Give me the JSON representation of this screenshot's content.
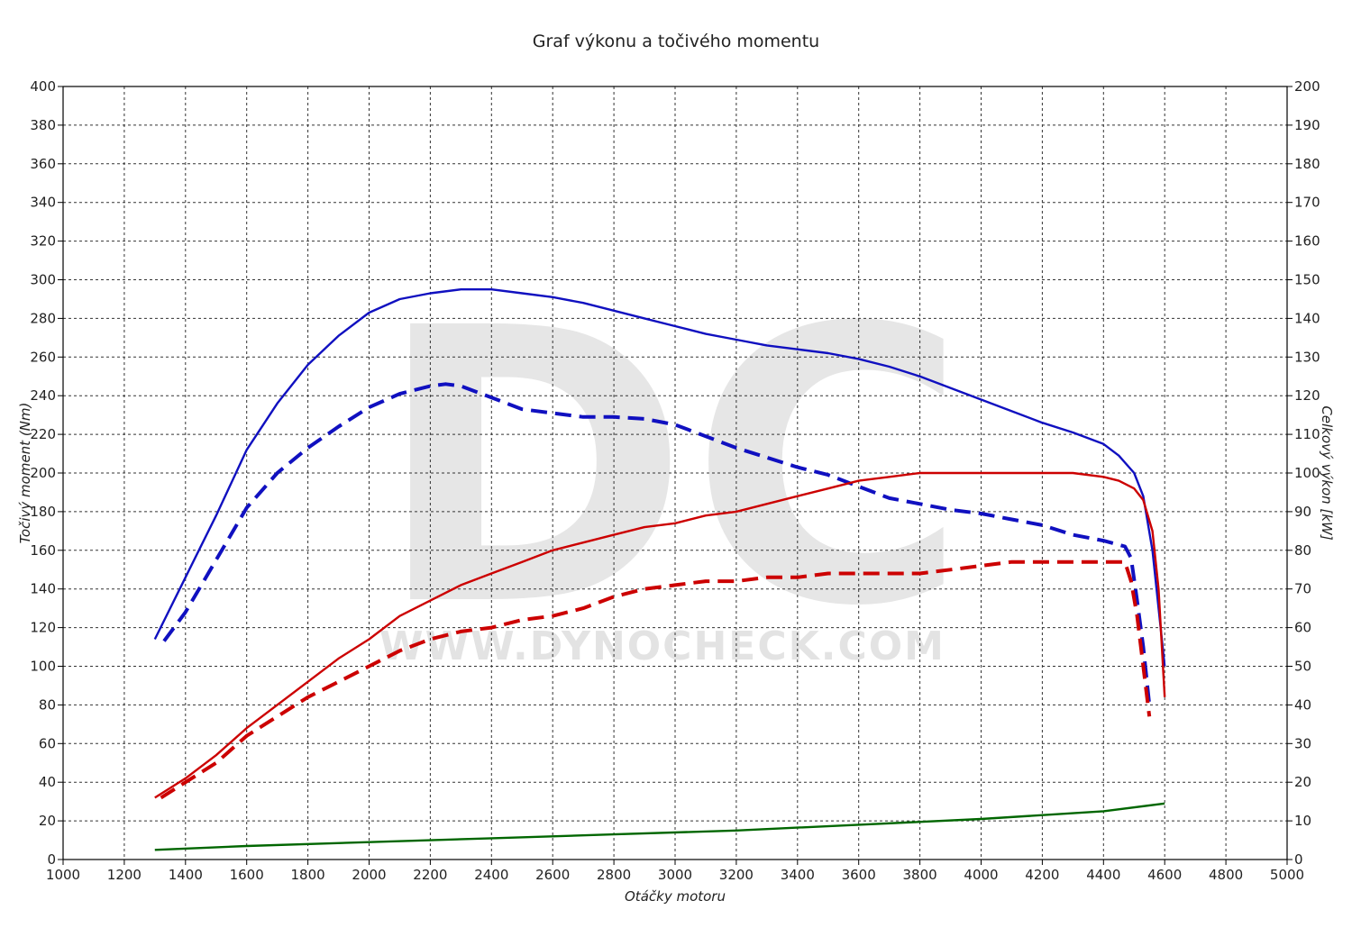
{
  "chart_data": {
    "type": "line",
    "title": "Graf výkonu a točivého momentu",
    "xlabel": "Otáčky motoru",
    "ylabel_left": "Točivý moment (Nm)",
    "ylabel_right": "Celkový výkon [kW]",
    "xlim": [
      1000,
      5000
    ],
    "ylim_left": [
      0,
      400
    ],
    "ylim_right": [
      0,
      200
    ],
    "x_ticks": [
      1000,
      1200,
      1400,
      1600,
      1800,
      2000,
      2200,
      2400,
      2600,
      2800,
      3000,
      3200,
      3400,
      3600,
      3800,
      4000,
      4200,
      4400,
      4600,
      4800,
      5000
    ],
    "y_ticks_left": [
      0,
      20,
      40,
      60,
      80,
      100,
      120,
      140,
      160,
      180,
      200,
      220,
      240,
      260,
      280,
      300,
      320,
      340,
      360,
      380,
      400
    ],
    "y_ticks_right": [
      0,
      10,
      20,
      30,
      40,
      50,
      60,
      70,
      80,
      90,
      100,
      110,
      120,
      130,
      140,
      150,
      160,
      170,
      180,
      190,
      200
    ],
    "grid": true,
    "watermark": {
      "letters": "DC",
      "url": "WWW.DYNOCHECK.COM"
    },
    "series": [
      {
        "axis": "left",
        "color": "#1010c0",
        "dash": false,
        "points": [
          [
            1300,
            114
          ],
          [
            1400,
            146
          ],
          [
            1500,
            178
          ],
          [
            1600,
            212
          ],
          [
            1700,
            236
          ],
          [
            1800,
            256
          ],
          [
            1900,
            271
          ],
          [
            2000,
            283
          ],
          [
            2100,
            290
          ],
          [
            2200,
            293
          ],
          [
            2300,
            295
          ],
          [
            2400,
            295
          ],
          [
            2500,
            293
          ],
          [
            2600,
            291
          ],
          [
            2700,
            288
          ],
          [
            2800,
            284
          ],
          [
            2900,
            280
          ],
          [
            3000,
            276
          ],
          [
            3100,
            272
          ],
          [
            3200,
            269
          ],
          [
            3300,
            266
          ],
          [
            3400,
            264
          ],
          [
            3500,
            262
          ],
          [
            3600,
            259
          ],
          [
            3700,
            255
          ],
          [
            3800,
            250
          ],
          [
            3900,
            244
          ],
          [
            4000,
            238
          ],
          [
            4100,
            232
          ],
          [
            4200,
            226
          ],
          [
            4300,
            221
          ],
          [
            4400,
            215
          ],
          [
            4450,
            209
          ],
          [
            4500,
            200
          ],
          [
            4530,
            188
          ],
          [
            4560,
            160
          ],
          [
            4580,
            130
          ],
          [
            4600,
            100
          ]
        ]
      },
      {
        "axis": "left",
        "color": "#1010c0",
        "dash": true,
        "points": [
          [
            1330,
            113
          ],
          [
            1400,
            128
          ],
          [
            1500,
            155
          ],
          [
            1600,
            182
          ],
          [
            1700,
            200
          ],
          [
            1800,
            213
          ],
          [
            1900,
            224
          ],
          [
            2000,
            234
          ],
          [
            2100,
            241
          ],
          [
            2200,
            245
          ],
          [
            2250,
            246
          ],
          [
            2300,
            245
          ],
          [
            2400,
            239
          ],
          [
            2500,
            233
          ],
          [
            2600,
            231
          ],
          [
            2700,
            229
          ],
          [
            2800,
            229
          ],
          [
            2900,
            228
          ],
          [
            3000,
            225
          ],
          [
            3100,
            219
          ],
          [
            3200,
            213
          ],
          [
            3300,
            208
          ],
          [
            3400,
            203
          ],
          [
            3500,
            199
          ],
          [
            3600,
            193
          ],
          [
            3700,
            187
          ],
          [
            3800,
            184
          ],
          [
            3900,
            181
          ],
          [
            4000,
            179
          ],
          [
            4100,
            176
          ],
          [
            4200,
            173
          ],
          [
            4300,
            168
          ],
          [
            4400,
            165
          ],
          [
            4470,
            162
          ],
          [
            4490,
            156
          ],
          [
            4510,
            134
          ],
          [
            4530,
            110
          ],
          [
            4550,
            80
          ]
        ]
      },
      {
        "axis": "right",
        "color": "#cc0000",
        "dash": false,
        "points": [
          [
            1300,
            16
          ],
          [
            1400,
            21
          ],
          [
            1500,
            27
          ],
          [
            1600,
            34
          ],
          [
            1700,
            40
          ],
          [
            1800,
            46
          ],
          [
            1900,
            52
          ],
          [
            2000,
            57
          ],
          [
            2100,
            63
          ],
          [
            2200,
            67
          ],
          [
            2300,
            71
          ],
          [
            2400,
            74
          ],
          [
            2500,
            77
          ],
          [
            2600,
            80
          ],
          [
            2700,
            82
          ],
          [
            2800,
            84
          ],
          [
            2900,
            86
          ],
          [
            3000,
            87
          ],
          [
            3100,
            89
          ],
          [
            3200,
            90
          ],
          [
            3300,
            92
          ],
          [
            3400,
            94
          ],
          [
            3500,
            96
          ],
          [
            3600,
            98
          ],
          [
            3700,
            99
          ],
          [
            3800,
            100
          ],
          [
            3900,
            100
          ],
          [
            4000,
            100
          ],
          [
            4100,
            100
          ],
          [
            4200,
            100
          ],
          [
            4300,
            100
          ],
          [
            4400,
            99
          ],
          [
            4450,
            98
          ],
          [
            4500,
            96
          ],
          [
            4530,
            93
          ],
          [
            4560,
            85
          ],
          [
            4580,
            70
          ],
          [
            4600,
            42
          ]
        ]
      },
      {
        "axis": "right",
        "color": "#cc0000",
        "dash": true,
        "points": [
          [
            1320,
            16
          ],
          [
            1400,
            20
          ],
          [
            1500,
            25
          ],
          [
            1600,
            32
          ],
          [
            1700,
            37
          ],
          [
            1800,
            42
          ],
          [
            1900,
            46
          ],
          [
            2000,
            50
          ],
          [
            2100,
            54
          ],
          [
            2200,
            57
          ],
          [
            2300,
            59
          ],
          [
            2400,
            60
          ],
          [
            2500,
            62
          ],
          [
            2600,
            63
          ],
          [
            2700,
            65
          ],
          [
            2800,
            68
          ],
          [
            2900,
            70
          ],
          [
            3000,
            71
          ],
          [
            3100,
            72
          ],
          [
            3200,
            72
          ],
          [
            3300,
            73
          ],
          [
            3400,
            73
          ],
          [
            3500,
            74
          ],
          [
            3600,
            74
          ],
          [
            3700,
            74
          ],
          [
            3800,
            74
          ],
          [
            3900,
            75
          ],
          [
            4000,
            76
          ],
          [
            4100,
            77
          ],
          [
            4200,
            77
          ],
          [
            4300,
            77
          ],
          [
            4400,
            77
          ],
          [
            4470,
            77
          ],
          [
            4490,
            72
          ],
          [
            4510,
            63
          ],
          [
            4530,
            50
          ],
          [
            4550,
            37
          ]
        ]
      },
      {
        "axis": "left",
        "color": "#006600",
        "dash": false,
        "points": [
          [
            1300,
            5
          ],
          [
            1600,
            7
          ],
          [
            2000,
            9
          ],
          [
            2400,
            11
          ],
          [
            2800,
            13
          ],
          [
            3200,
            15
          ],
          [
            3600,
            18
          ],
          [
            4000,
            21
          ],
          [
            4400,
            25
          ],
          [
            4600,
            29
          ]
        ]
      }
    ]
  }
}
